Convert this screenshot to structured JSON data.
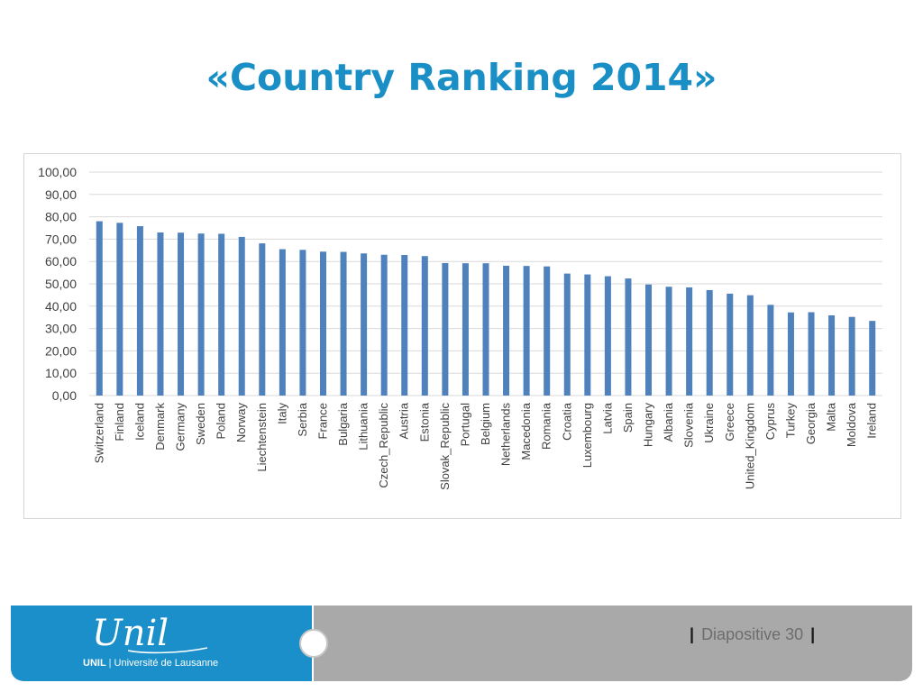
{
  "slide": {
    "title": "«Country Ranking 2014»"
  },
  "footer": {
    "logo_script": "Unil",
    "logo_short": "UNIL",
    "logo_separator": "|",
    "logo_name": "Université de Lausanne",
    "slide_number_bar_left": "|",
    "slide_number_text": "Diapositive 30",
    "slide_number_bar_right": "|"
  },
  "colors": {
    "title": "#1a8fc6",
    "bar": "#4f81bd",
    "grid": "#d9d9d9",
    "footer_blue": "#1b8fc9",
    "footer_gray": "#a9a9a9"
  },
  "chart_data": {
    "type": "bar",
    "title": "",
    "xlabel": "",
    "ylabel": "",
    "ylim": [
      0,
      100
    ],
    "yticks": [
      "0,00",
      "10,00",
      "20,00",
      "30,00",
      "40,00",
      "50,00",
      "60,00",
      "70,00",
      "80,00",
      "90,00",
      "100,00"
    ],
    "grid": true,
    "legend": "none",
    "categories": [
      "Switzerland",
      "Finland",
      "Iceland",
      "Denmark",
      "Germany",
      "Sweden",
      "Poland",
      "Norway",
      "Liechtenstein",
      "Italy",
      "Serbia",
      "France",
      "Bulgaria",
      "Lithuania",
      "Czech_Republic",
      "Austria",
      "Estonia",
      "Slovak_Republic",
      "Portugal",
      "Belgium",
      "Netherlands",
      "Macedonia",
      "Romania",
      "Croatia",
      "Luxembourg",
      "Latvia",
      "Spain",
      "Hungary",
      "Albania",
      "Slovenia",
      "Ukraine",
      "Greece",
      "United_Kingdom",
      "Cyprus",
      "Turkey",
      "Georgia",
      "Malta",
      "Moldova",
      "Ireland"
    ],
    "values": [
      78.0,
      77.3,
      75.8,
      73.0,
      72.9,
      72.5,
      72.4,
      71.0,
      68.1,
      65.5,
      65.2,
      64.4,
      64.3,
      63.6,
      63.0,
      62.9,
      62.4,
      59.3,
      59.2,
      59.2,
      58.1,
      58.0,
      57.8,
      54.6,
      54.2,
      53.4,
      52.4,
      49.7,
      48.7,
      48.4,
      47.2,
      45.6,
      44.9,
      40.6,
      37.2,
      37.3,
      35.9,
      35.2,
      33.4
    ]
  }
}
